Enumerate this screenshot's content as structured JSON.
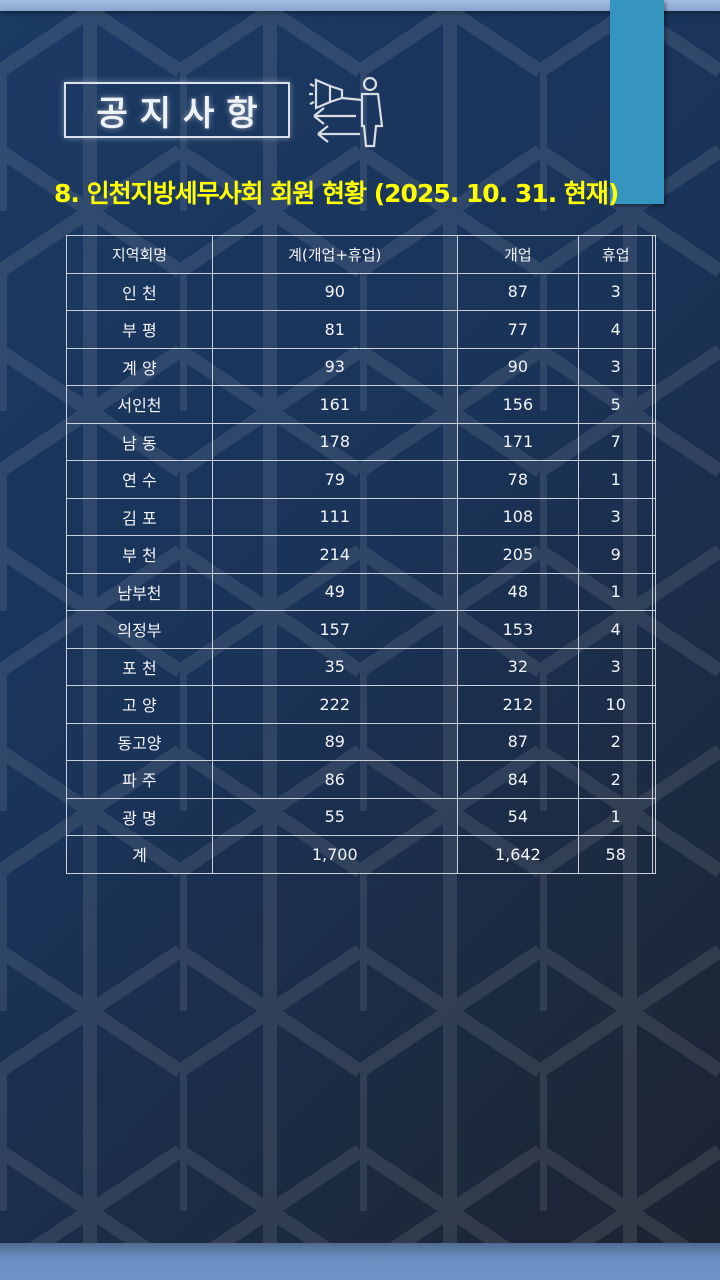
{
  "header": {
    "notice_label": "공지사항",
    "icon": "megaphone-presenter-icon"
  },
  "title": "8. 인천지방세무사회 회원 현황 (2025. 10. 31. 현재)",
  "colors": {
    "title": "#ffff00",
    "ribbon": "#3595bf",
    "background": "#1b3a64"
  },
  "table": {
    "columns": [
      "지역회명",
      "계(개업+휴업)",
      "개업",
      "휴업",
      ""
    ],
    "rows": [
      [
        "인 천",
        "90",
        "87",
        "3",
        ""
      ],
      [
        "부 평",
        "81",
        "77",
        "4",
        ""
      ],
      [
        "계 양",
        "93",
        "90",
        "3",
        ""
      ],
      [
        "서인천",
        "161",
        "156",
        "5",
        ""
      ],
      [
        "남 동",
        "178",
        "171",
        "7",
        ""
      ],
      [
        "연 수",
        "79",
        "78",
        "1",
        ""
      ],
      [
        "김 포",
        "111",
        "108",
        "3",
        ""
      ],
      [
        "부 천",
        "214",
        "205",
        "9",
        ""
      ],
      [
        "남부천",
        "49",
        "48",
        "1",
        ""
      ],
      [
        "의정부",
        "157",
        "153",
        "4",
        ""
      ],
      [
        "포 천",
        "35",
        "32",
        "3",
        ""
      ],
      [
        "고 양",
        "222",
        "212",
        "10",
        ""
      ],
      [
        "동고양",
        "89",
        "87",
        "2",
        ""
      ],
      [
        "파 주",
        "86",
        "84",
        "2",
        ""
      ],
      [
        "광 명",
        "55",
        "54",
        "1",
        ""
      ],
      [
        "계",
        "1,700",
        "1,642",
        "58",
        ""
      ]
    ]
  }
}
